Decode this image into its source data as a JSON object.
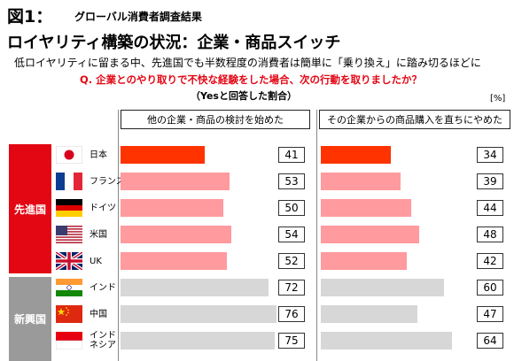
{
  "header": {
    "fig_label": "図1：",
    "fig_subtitle": "グローバル消費者調査結果",
    "main_title": "ロイヤリティ構築の状況：企業・商品スイッチ",
    "lead": "低ロイヤリティに留まる中、先進国でも半数程度の消費者は簡単に「乗り換え」に踏み切るほどに",
    "question": "Q. 企業とのやり取りで不快な経験をした場合、次の行動を取りましたか？",
    "subquestion": "（Yesと回答した割合）",
    "unit": "[%]"
  },
  "groups": {
    "developed": "先進国",
    "emerging": "新興国"
  },
  "countries": [
    {
      "label": "日本",
      "flag": "japan"
    },
    {
      "label": "フランス",
      "flag": "france"
    },
    {
      "label": "ドイツ",
      "flag": "germany"
    },
    {
      "label": "米国",
      "flag": "usa"
    },
    {
      "label": "UK",
      "flag": "uk"
    },
    {
      "label": "インド",
      "flag": "india"
    },
    {
      "label": "中国",
      "flag": "china"
    },
    {
      "label": "インド\nネシア",
      "flag": "indonesia"
    }
  ],
  "colors": {
    "highlight": "#ff3300",
    "developed": "#ff9a9e",
    "emerging": "#d7d7d7",
    "developed_group": "#e30613",
    "emerging_group": "#9a9a9a"
  },
  "chart_data": {
    "type": "bar",
    "orientation": "horizontal",
    "categories": [
      "日本",
      "フランス",
      "ドイツ",
      "米国",
      "UK",
      "インド",
      "中国",
      "インドネシア"
    ],
    "series": [
      {
        "name": "他の企業・商品の検討を始めた",
        "values": [
          41,
          53,
          50,
          54,
          52,
          72,
          76,
          75
        ]
      },
      {
        "name": "その企業からの商品購入を直ちにやめた",
        "values": [
          34,
          39,
          44,
          48,
          42,
          60,
          47,
          64
        ]
      }
    ],
    "ylabel": "",
    "xlabel": "",
    "xlim": [
      0,
      100
    ]
  }
}
